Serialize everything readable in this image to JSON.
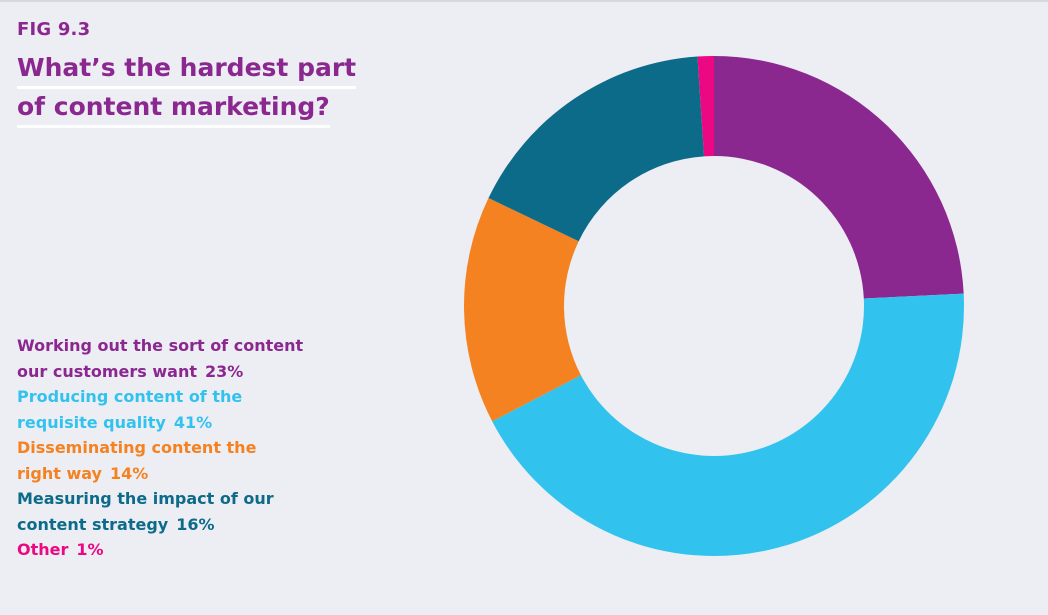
{
  "figure": {
    "label": "FIG 9.3",
    "title_lines": [
      "What’s the hardest part",
      "of content marketing?"
    ]
  },
  "chart_data": {
    "type": "pie",
    "donut": true,
    "categories": [
      "Working out the sort of content our customers want",
      "Producing content of the requisite quality",
      "Disseminating content the right way",
      "Measuring the impact of our content strategy",
      "Other"
    ],
    "values": [
      23,
      41,
      14,
      16,
      1
    ],
    "value_labels": [
      "23%",
      "41%",
      "14%",
      "16%",
      "1%"
    ],
    "legend_lines": [
      [
        "Working out the sort of content",
        "our customers want"
      ],
      [
        "Producing content of the",
        "requisite quality"
      ],
      [
        "Disseminating content the",
        "right way"
      ],
      [
        "Measuring the impact of our",
        "content strategy"
      ],
      [
        "Other"
      ]
    ],
    "colors": [
      "#8b2890",
      "#32c2ee",
      "#f48221",
      "#0d6b8a",
      "#ec0882"
    ],
    "start_angle_deg": 0,
    "legend_position": "left"
  },
  "colors": {
    "background": "#ededf4",
    "title": "#8b2890"
  }
}
